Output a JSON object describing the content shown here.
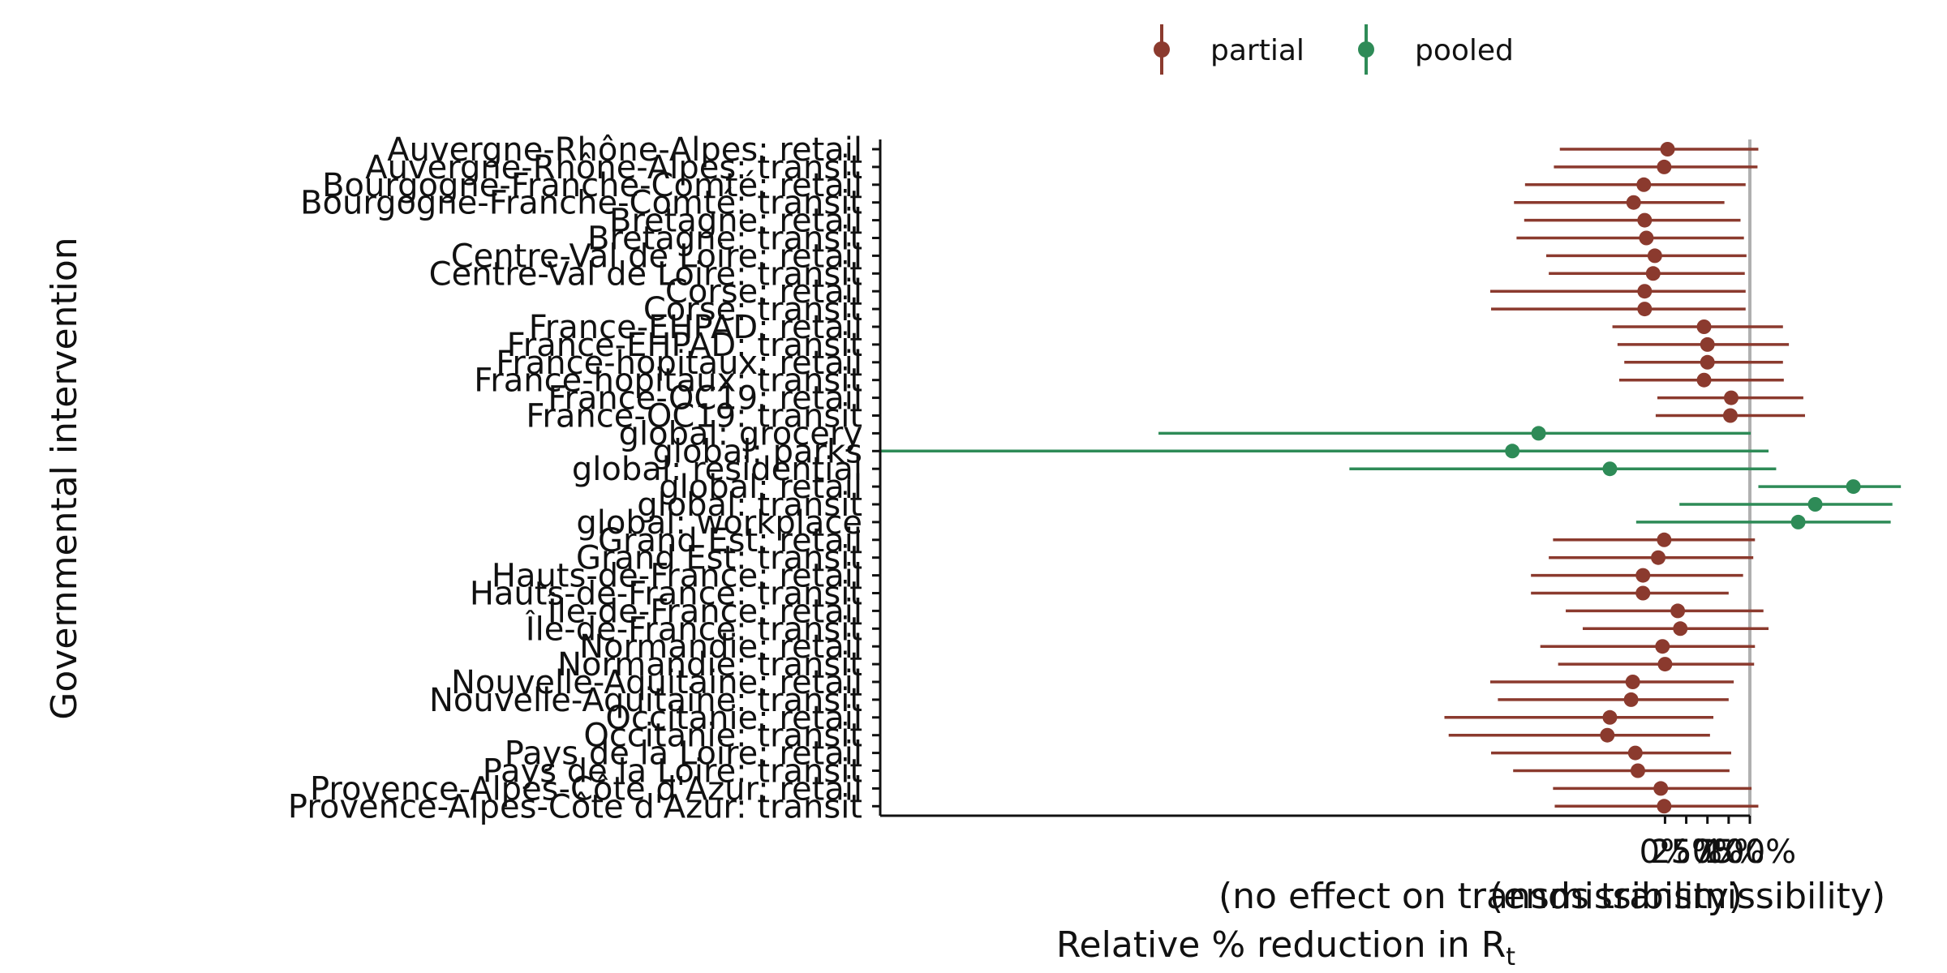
{
  "chart_data": {
    "type": "scatter",
    "subtype": "point-range",
    "ylabel": "Governmental intervention",
    "xlabel_line1": "(no effect on transmissibility)",
    "xlabel_line1b": "(ends transmissibility)",
    "xlabel_line2": "Relative % reduction in  R",
    "xlabel_sub": "t",
    "xlim": [
      -925,
      100
    ],
    "x_ticks": [
      0,
      25,
      50,
      75,
      100
    ],
    "x_tick_labels": [
      "0%",
      "25%",
      "50%",
      "75%",
      "100%"
    ],
    "reference_line_x": 100,
    "grid": false,
    "legend_position": "top",
    "legend": [
      {
        "name": "partial",
        "color": "#8B3A2E"
      },
      {
        "name": "pooled",
        "color": "#2E8B57"
      }
    ],
    "categories": [
      "Auvergne-Rhône-Alpes: retail",
      "Auvergne-Rhône-Alpes: transit",
      "Bourgogne-Franche-Comté: retail",
      "Bourgogne-Franche-Comté: transit",
      "Bretagne: retail",
      "Bretagne: transit",
      "Centre-Val de Loire: retail",
      "Centre-Val de Loire: transit",
      "Corse: retail",
      "Corse: transit",
      "France-EHPAD: retail",
      "France-EHPAD: transit",
      "France-hopitaux: retail",
      "France-hopitaux: transit",
      "France-OC19: retail",
      "France-OC19: transit",
      "global: grocery",
      "global: parks",
      "global: residential",
      "global: retail",
      "global: transit",
      "global: workplace",
      "Grand Est: retail",
      "Grand Est: transit",
      "Hauts-de-France: retail",
      "Hauts-de-France: transit",
      "Île-de-France: retail",
      "Île-de-France: transit",
      "Normandie: retail",
      "Normandie: transit",
      "Nouvelle-Aquitaine: retail",
      "Nouvelle-Aquitaine: transit",
      "Occitanie: retail",
      "Occitanie: transit",
      "Pays de la Loire: retail",
      "Pays de la Loire: transit",
      "Provence-Alpes-Côte d'Azur: retail",
      "Provence-Alpes-Côte d'Azur: transit"
    ],
    "series": [
      {
        "name": "partial",
        "points": [
          {
            "category": "Auvergne-Rhône-Alpes: retail",
            "estimate": 3,
            "low": -124,
            "high": 110
          },
          {
            "category": "Auvergne-Rhône-Alpes: transit",
            "estimate": -1,
            "low": -131,
            "high": 109
          },
          {
            "category": "Bourgogne-Franche-Comté: retail",
            "estimate": -25,
            "low": -165,
            "high": 95
          },
          {
            "category": "Bourgogne-Franche-Comté: transit",
            "estimate": -37,
            "low": -178,
            "high": 70
          },
          {
            "category": "Bretagne: retail",
            "estimate": -24,
            "low": -166,
            "high": 89
          },
          {
            "category": "Bretagne: transit",
            "estimate": -22,
            "low": -175,
            "high": 93
          },
          {
            "category": "Centre-Val de Loire: retail",
            "estimate": -12,
            "low": -140,
            "high": 96
          },
          {
            "category": "Centre-Val de Loire: transit",
            "estimate": -14,
            "low": -137,
            "high": 94
          },
          {
            "category": "Corse: retail",
            "estimate": -24,
            "low": -206,
            "high": 95
          },
          {
            "category": "Corse: transit",
            "estimate": -24,
            "low": -205,
            "high": 95
          },
          {
            "category": "France-EHPAD: retail",
            "estimate": 46,
            "low": -62,
            "high": 139
          },
          {
            "category": "France-EHPAD: transit",
            "estimate": 50,
            "low": -56,
            "high": 146
          },
          {
            "category": "France-hopitaux: retail",
            "estimate": 50,
            "low": -48,
            "high": 139
          },
          {
            "category": "France-hopitaux: transit",
            "estimate": 46,
            "low": -54,
            "high": 140
          },
          {
            "category": "France-OC19: retail",
            "estimate": 78,
            "low": -9,
            "high": 163
          },
          {
            "category": "France-OC19: transit",
            "estimate": 77,
            "low": -11,
            "high": 165
          },
          {
            "category": "Grand Est: retail",
            "estimate": -1,
            "low": -132,
            "high": 106
          },
          {
            "category": "Grand Est: transit",
            "estimate": -8,
            "low": -137,
            "high": 104
          },
          {
            "category": "Hauts-de-France: retail",
            "estimate": -26,
            "low": -158,
            "high": 92
          },
          {
            "category": "Hauts-de-France: transit",
            "estimate": -26,
            "low": -158,
            "high": 75
          },
          {
            "category": "Île-de-France: retail",
            "estimate": 15,
            "low": -117,
            "high": 116
          },
          {
            "category": "Île-de-France: transit",
            "estimate": 18,
            "low": -97,
            "high": 122
          },
          {
            "category": "Normandie: retail",
            "estimate": -3,
            "low": -147,
            "high": 106
          },
          {
            "category": "Normandie: transit",
            "estimate": 0,
            "low": -126,
            "high": 105
          },
          {
            "category": "Nouvelle-Aquitaine: retail",
            "estimate": -38,
            "low": -206,
            "high": 81
          },
          {
            "category": "Nouvelle-Aquitaine: transit",
            "estimate": -40,
            "low": -197,
            "high": 75
          },
          {
            "category": "Occitanie: retail",
            "estimate": -65,
            "low": -260,
            "high": 57
          },
          {
            "category": "Occitanie: transit",
            "estimate": -68,
            "low": -255,
            "high": 53
          },
          {
            "category": "Pays de la Loire: retail",
            "estimate": -35,
            "low": -205,
            "high": 78
          },
          {
            "category": "Pays de la Loire: transit",
            "estimate": -32,
            "low": -179,
            "high": 76
          },
          {
            "category": "Provence-Alpes-Côte d'Azur: retail",
            "estimate": -5,
            "low": -132,
            "high": 102
          },
          {
            "category": "Provence-Alpes-Côte d'Azur: transit",
            "estimate": -1,
            "low": -130,
            "high": 110
          }
        ]
      },
      {
        "name": "pooled",
        "points": [
          {
            "category": "global: grocery",
            "estimate": -149,
            "low": -597,
            "high": 101
          },
          {
            "category": "global: parks",
            "estimate": -180,
            "low": -925,
            "high": 122
          },
          {
            "category": "global: residential",
            "estimate": -65,
            "low": -372,
            "high": 131
          },
          {
            "category": "global: retail",
            "estimate": 222,
            "low": 110,
            "high": 278
          },
          {
            "category": "global: transit",
            "estimate": 177,
            "low": 17,
            "high": 268
          },
          {
            "category": "global: workplace",
            "estimate": 157,
            "low": -34,
            "high": 266
          }
        ]
      }
    ]
  }
}
